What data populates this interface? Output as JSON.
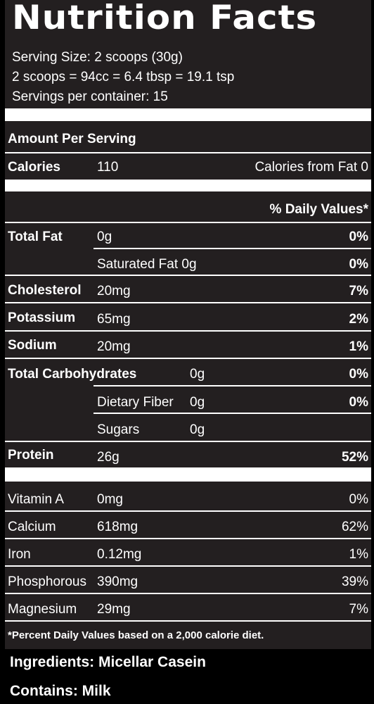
{
  "title": "Nutrition Facts",
  "serving": {
    "size": "Serving Size: 2 scoops (30g)",
    "conversion": "2 scoops = 94cc = 6.4 tbsp = 19.1 tsp",
    "per_container": "Servings per container: 15"
  },
  "amount_per_serving": "Amount Per Serving",
  "calories": {
    "label": "Calories",
    "value": "110",
    "from_fat": "Calories from Fat 0"
  },
  "dv_header": "% Daily Values*",
  "nutrients": {
    "total_fat": {
      "label": "Total Fat",
      "amount": "0g",
      "dv": "0%"
    },
    "saturated_fat": {
      "label": "Saturated Fat 0g",
      "dv": "0%"
    },
    "cholesterol": {
      "label": "Cholesterol",
      "amount": "20mg",
      "dv": "7%"
    },
    "potassium": {
      "label": "Potassium",
      "amount": "65mg",
      "dv": "2%"
    },
    "sodium": {
      "label": "Sodium",
      "amount": "20mg",
      "dv": "1%"
    },
    "total_carbs": {
      "label": "Total Carbohydrates",
      "amount": "0g",
      "dv": "0%"
    },
    "dietary_fiber": {
      "label": "Dietary Fiber",
      "amount": "0g",
      "dv": "0%"
    },
    "sugars": {
      "label": "Sugars",
      "amount": "0g"
    },
    "protein": {
      "label": "Protein",
      "amount": "26g",
      "dv": "52%"
    }
  },
  "minerals": {
    "vitamin_a": {
      "label": "Vitamin A",
      "amount": "0mg",
      "dv": "0%"
    },
    "calcium": {
      "label": "Calcium",
      "amount": "618mg",
      "dv": "62%"
    },
    "iron": {
      "label": "Iron",
      "amount": "0.12mg",
      "dv": "1%"
    },
    "phosphorous": {
      "label": "Phosphorous",
      "amount": "390mg",
      "dv": "39%"
    },
    "magnesium": {
      "label": "Magnesium",
      "amount": "29mg",
      "dv": "7%"
    }
  },
  "footnote": "*Percent Daily Values based on a 2,000 calorie diet.",
  "ingredients": "Ingredients: Micellar Casein",
  "contains": "Contains: Milk",
  "colors": {
    "panel": "#231f20",
    "background": "#000000",
    "text": "#ffffff"
  }
}
